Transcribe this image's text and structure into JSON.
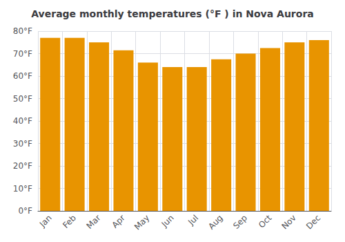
{
  "chart_data": {
    "type": "bar",
    "title": "Average monthly temperatures (°F ) in Nova Aurora",
    "categories": [
      "Jan",
      "Feb",
      "Mar",
      "Apr",
      "May",
      "Jun",
      "Jul",
      "Aug",
      "Sep",
      "Oct",
      "Nov",
      "Dec"
    ],
    "values": [
      77,
      77,
      75,
      71.5,
      66,
      64,
      64,
      67.5,
      70,
      72.5,
      75,
      76
    ],
    "color": "#E89400",
    "ylim": [
      0,
      80
    ],
    "yticks": [
      {
        "value": 0,
        "label": "0°F"
      },
      {
        "value": 10,
        "label": "10°F"
      },
      {
        "value": 20,
        "label": "20°F"
      },
      {
        "value": 30,
        "label": "30°F"
      },
      {
        "value": 40,
        "label": "40°F"
      },
      {
        "value": 50,
        "label": "50°F"
      },
      {
        "value": 60,
        "label": "60°F"
      },
      {
        "value": 70,
        "label": "70°F"
      },
      {
        "value": 80,
        "label": "80°F"
      }
    ],
    "grid": true
  }
}
